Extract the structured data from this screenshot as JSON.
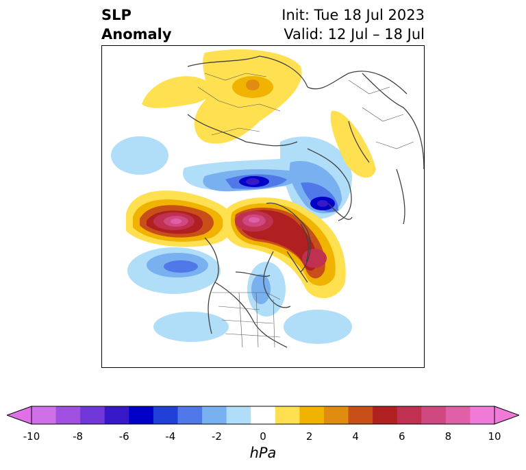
{
  "title": {
    "left_lines": [
      "SLP",
      "Anomaly"
    ],
    "right_lines": [
      "Init: Tue 18 Jul 2023",
      "Valid: 12 Jul – 18 Jul"
    ]
  },
  "colorbar": {
    "unit": "hPa",
    "range": [
      -10,
      10
    ],
    "ticks": [
      "-10",
      "-8",
      "-6",
      "-4",
      "-2",
      "0",
      "2",
      "4",
      "6",
      "8",
      "10"
    ],
    "extend": "both",
    "colors": [
      "#d070e8",
      "#a050e0",
      "#7038d8",
      "#3818c8",
      "#0000c8",
      "#2040d8",
      "#5078e8",
      "#78b0f0",
      "#b0ddf8",
      "#ffffff",
      "#ffe050",
      "#f0b400",
      "#e08c10",
      "#c85018",
      "#b02020",
      "#c03050",
      "#d04880",
      "#e060a8",
      "#f07ad8"
    ],
    "extend_low_color": "#e070e8",
    "extend_high_color": "#f07ad8"
  },
  "map": {
    "projection": "north-polar-stereographic",
    "field": "sea-level-pressure-anomaly"
  }
}
